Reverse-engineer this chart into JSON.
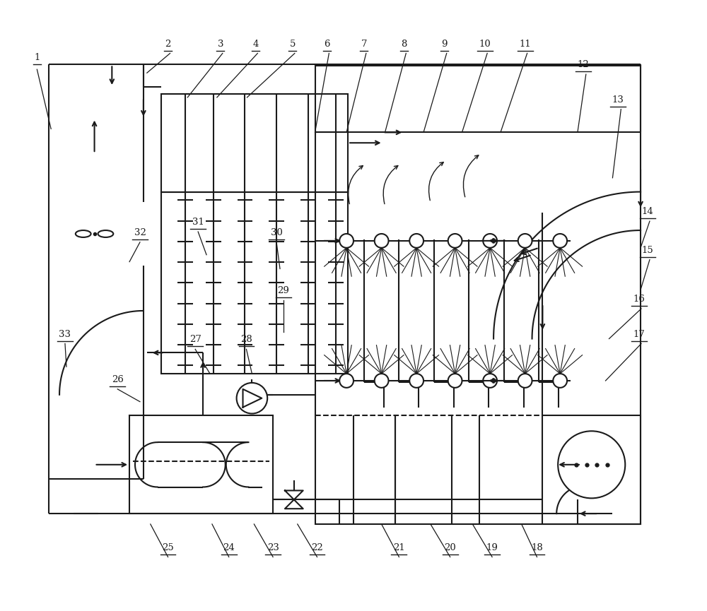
{
  "bg_color": "#ffffff",
  "line_color": "#1a1a1a",
  "fig_width": 10.0,
  "fig_height": 8.65,
  "lw": 1.5
}
